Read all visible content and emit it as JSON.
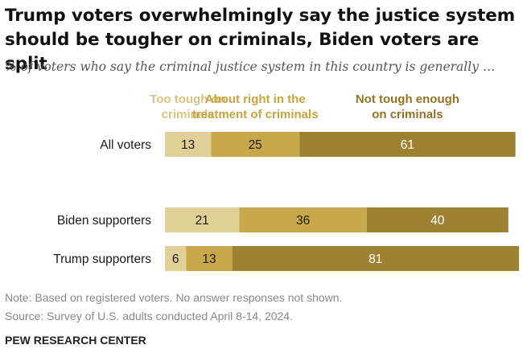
{
  "title_line1": "Trump voters overwhelmingly say the justice system",
  "title_line2": "should be tougher on criminals, Biden voters are split",
  "subtitle": "% of voters who say the criminal justice system in this country is generally …",
  "chart_data": {
    "type": "bar",
    "orientation": "horizontal",
    "stacked": true,
    "categories": [
      "All voters",
      "Biden supporters",
      "Trump supporters"
    ],
    "series": [
      {
        "name": [
          "Too tough on",
          "criminals"
        ],
        "values": [
          13,
          21,
          6
        ],
        "color": "#e0cf96",
        "label_color": "#d9c383"
      },
      {
        "name": [
          "About right in the",
          "treatment of criminals"
        ],
        "values": [
          25,
          36,
          13
        ],
        "color": "#c9a84b",
        "label_color": "#c4a43f"
      },
      {
        "name": [
          "Not tough enough",
          "on criminals"
        ],
        "values": [
          61,
          40,
          81
        ],
        "color": "#9e8133",
        "label_color": "#8f7428"
      }
    ],
    "value_label_color": "#1a1a1a",
    "value_label_color_dark": "#ffffff",
    "grid": false,
    "legend": "top"
  },
  "note": "Note: Based on registered voters. No answer responses not shown.",
  "source": "Source: Survey of U.S. adults conducted April 8-14, 2024.",
  "footer": "PEW RESEARCH CENTER"
}
